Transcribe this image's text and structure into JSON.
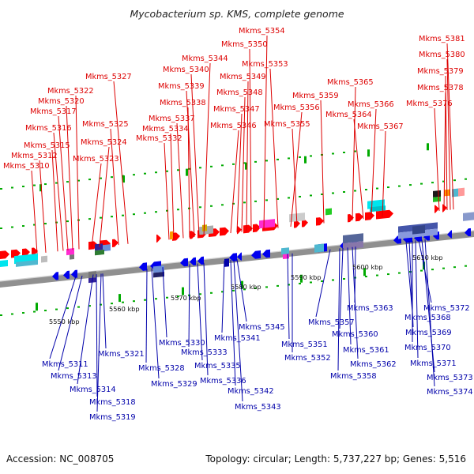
{
  "title": "Mycobacterium sp. KMS, complete genome",
  "footer": {
    "accession": "Accession: NC_008705",
    "stats": "Topology: circular; Length: 5,737,227 bp; Genes: 5,516"
  },
  "colors": {
    "forward_gene": "#ff0000",
    "reverse_gene": "#0000ee",
    "forward_label": "#dd0000",
    "reverse_label": "#0000aa",
    "backbone": "#909090",
    "tick": "#00aa00"
  },
  "scale_labels": [
    "5550 kbp",
    "5560 kbp",
    "5570 kbp",
    "5580 kbp",
    "5590 kbp",
    "5600 kbp",
    "5610 kbp"
  ],
  "top_labels": [
    "Mkms_5310",
    "Mkms_5312",
    "Mkms_5315",
    "Mkms_5316",
    "Mkms_5317",
    "Mkms_5320",
    "Mkms_5322",
    "Mkms_5323",
    "Mkms_5324",
    "Mkms_5325",
    "Mkms_5327",
    "Mkms_5332",
    "Mkms_5334",
    "Mkms_5337",
    "Mkms_5338",
    "Mkms_5339",
    "Mkms_5340",
    "Mkms_5344",
    "Mkms_5346",
    "Mkms_5347",
    "Mkms_5348",
    "Mkms_5349",
    "Mkms_5350",
    "Mkms_5354",
    "Mkms_5353",
    "Mkms_5355",
    "Mkms_5356",
    "Mkms_5359",
    "Mkms_5364",
    "Mkms_5365",
    "Mkms_5366",
    "Mkms_5367",
    "Mkms_5376",
    "Mkms_5378",
    "Mkms_5379",
    "Mkms_5380",
    "Mkms_5381"
  ],
  "bottom_labels": [
    "Mkms_5311",
    "Mkms_5313",
    "Mkms_5314",
    "Mkms_5318",
    "Mkms_5319",
    "Mkms_5321",
    "Mkms_5328",
    "Mkms_5329",
    "Mkms_5330",
    "Mkms_5333",
    "Mkms_5335",
    "Mkms_5336",
    "Mkms_5341",
    "Mkms_5342",
    "Mkms_5343",
    "Mkms_5345",
    "Mkms_5351",
    "Mkms_5352",
    "Mkms_5357",
    "Mkms_5358",
    "Mkms_5360",
    "Mkms_5361",
    "Mkms_5362",
    "Mkms_5363",
    "Mkms_5368",
    "Mkms_5369",
    "Mkms_5370",
    "Mkms_5371",
    "Mkms_5372",
    "Mkms_5373",
    "Mkms_5374"
  ]
}
